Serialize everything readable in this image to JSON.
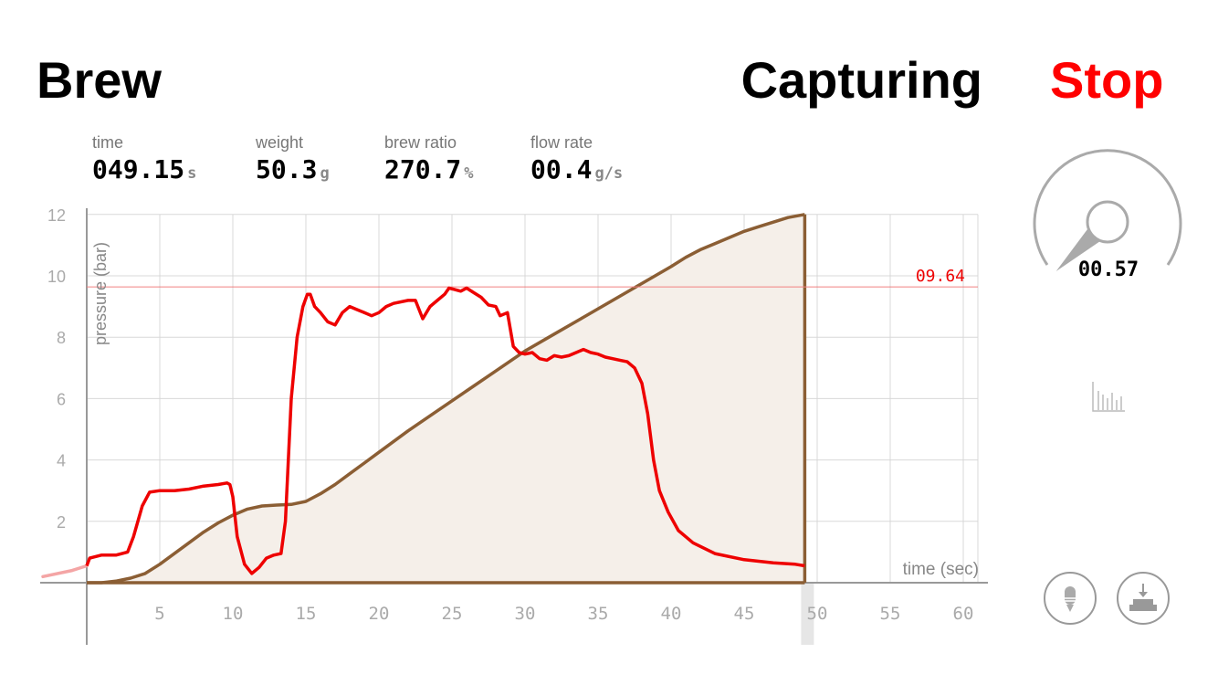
{
  "header": {
    "title": "Brew",
    "status": "Capturing",
    "stop_label": "Stop"
  },
  "metrics": [
    {
      "label": "time",
      "value": "049.15",
      "unit": "s"
    },
    {
      "label": "weight",
      "value": "50.3",
      "unit": "g"
    },
    {
      "label": "brew ratio",
      "value": "270.7",
      "unit": "%"
    },
    {
      "label": "flow rate",
      "value": "00.4",
      "unit": "g/s"
    }
  ],
  "gauge": {
    "value": "00.57",
    "level": 0.05
  },
  "colors": {
    "pressure": "#ee0000",
    "weight": "#8b5e34",
    "weight_fill": "#f5efe9",
    "accent_stop": "#ff0000"
  },
  "icons": [
    "histogram-icon",
    "tare-icon",
    "save-download-icon"
  ],
  "chart_data": {
    "type": "line",
    "ylabel": "pressure (bar)",
    "xlabel": "time (sec)",
    "xlim": [
      0,
      61
    ],
    "ylim": [
      0,
      12
    ],
    "x_ticks": [
      5,
      10,
      15,
      20,
      25,
      30,
      35,
      40,
      45,
      50,
      55,
      60
    ],
    "y_ticks": [
      2,
      4,
      6,
      8,
      10,
      12
    ],
    "grid": true,
    "reference_line": {
      "value": 9.64,
      "label": "09.64"
    },
    "cursor_time": 49.15,
    "series": [
      {
        "kind": "pressure",
        "points": [
          [
            -3,
            0.2
          ],
          [
            -1,
            0.4
          ],
          [
            0,
            0.55
          ],
          [
            0.2,
            0.8
          ],
          [
            1,
            0.9
          ],
          [
            2,
            0.9
          ],
          [
            2.8,
            1
          ],
          [
            3.2,
            1.5
          ],
          [
            3.8,
            2.5
          ],
          [
            4.3,
            2.95
          ],
          [
            5,
            3
          ],
          [
            6,
            3
          ],
          [
            7,
            3.05
          ],
          [
            8,
            3.15
          ],
          [
            9,
            3.2
          ],
          [
            9.6,
            3.25
          ],
          [
            9.8,
            3.2
          ],
          [
            10,
            2.8
          ],
          [
            10.3,
            1.5
          ],
          [
            10.8,
            0.6
          ],
          [
            11.3,
            0.3
          ],
          [
            11.8,
            0.5
          ],
          [
            12.3,
            0.8
          ],
          [
            12.8,
            0.9
          ],
          [
            13.3,
            0.95
          ],
          [
            13.6,
            2
          ],
          [
            14,
            6
          ],
          [
            14.4,
            8
          ],
          [
            14.8,
            9
          ],
          [
            15.1,
            9.4
          ],
          [
            15.3,
            9.4
          ],
          [
            15.6,
            9
          ],
          [
            16,
            8.8
          ],
          [
            16.5,
            8.5
          ],
          [
            17,
            8.4
          ],
          [
            17.5,
            8.8
          ],
          [
            18,
            9
          ],
          [
            18.5,
            8.9
          ],
          [
            19,
            8.8
          ],
          [
            19.5,
            8.7
          ],
          [
            20,
            8.8
          ],
          [
            20.5,
            9
          ],
          [
            21,
            9.1
          ],
          [
            22,
            9.2
          ],
          [
            22.5,
            9.2
          ],
          [
            23,
            8.6
          ],
          [
            23.5,
            9
          ],
          [
            24,
            9.2
          ],
          [
            24.5,
            9.4
          ],
          [
            24.8,
            9.6
          ],
          [
            25.2,
            9.55
          ],
          [
            25.6,
            9.5
          ],
          [
            26,
            9.6
          ],
          [
            26.5,
            9.45
          ],
          [
            27,
            9.3
          ],
          [
            27.5,
            9.05
          ],
          [
            28,
            9
          ],
          [
            28.3,
            8.7
          ],
          [
            28.8,
            8.8
          ],
          [
            29.2,
            7.7
          ],
          [
            29.6,
            7.5
          ],
          [
            30,
            7.45
          ],
          [
            30.5,
            7.5
          ],
          [
            31,
            7.3
          ],
          [
            31.5,
            7.25
          ],
          [
            32,
            7.4
          ],
          [
            32.5,
            7.35
          ],
          [
            33,
            7.4
          ],
          [
            33.5,
            7.5
          ],
          [
            34,
            7.6
          ],
          [
            34.5,
            7.5
          ],
          [
            35,
            7.45
          ],
          [
            35.5,
            7.35
          ],
          [
            36,
            7.3
          ],
          [
            36.5,
            7.25
          ],
          [
            37,
            7.2
          ],
          [
            37.5,
            7.0
          ],
          [
            38,
            6.5
          ],
          [
            38.4,
            5.5
          ],
          [
            38.8,
            4
          ],
          [
            39.2,
            3
          ],
          [
            39.8,
            2.3
          ],
          [
            40.5,
            1.7
          ],
          [
            41.5,
            1.3
          ],
          [
            43,
            0.95
          ],
          [
            45,
            0.75
          ],
          [
            47,
            0.65
          ],
          [
            48.5,
            0.6
          ],
          [
            49.15,
            0.55
          ]
        ]
      },
      {
        "kind": "weight",
        "points": [
          [
            0,
            0
          ],
          [
            1,
            0
          ],
          [
            2,
            0.05
          ],
          [
            3,
            0.15
          ],
          [
            4,
            0.3
          ],
          [
            5,
            0.6
          ],
          [
            6,
            0.95
          ],
          [
            7,
            1.3
          ],
          [
            8,
            1.65
          ],
          [
            9,
            1.95
          ],
          [
            10,
            2.2
          ],
          [
            11,
            2.4
          ],
          [
            12,
            2.5
          ],
          [
            13,
            2.53
          ],
          [
            14,
            2.55
          ],
          [
            15,
            2.65
          ],
          [
            16,
            2.9
          ],
          [
            17,
            3.2
          ],
          [
            18,
            3.55
          ],
          [
            19,
            3.9
          ],
          [
            20,
            4.25
          ],
          [
            22,
            4.95
          ],
          [
            24,
            5.6
          ],
          [
            26,
            6.25
          ],
          [
            28,
            6.9
          ],
          [
            30,
            7.55
          ],
          [
            32,
            8.1
          ],
          [
            34,
            8.65
          ],
          [
            36,
            9.2
          ],
          [
            38,
            9.75
          ],
          [
            40,
            10.3
          ],
          [
            41,
            10.6
          ],
          [
            42,
            10.85
          ],
          [
            43,
            11.05
          ],
          [
            44,
            11.25
          ],
          [
            45,
            11.45
          ],
          [
            46,
            11.6
          ],
          [
            47,
            11.75
          ],
          [
            48,
            11.9
          ],
          [
            49.15,
            12
          ]
        ]
      }
    ]
  }
}
